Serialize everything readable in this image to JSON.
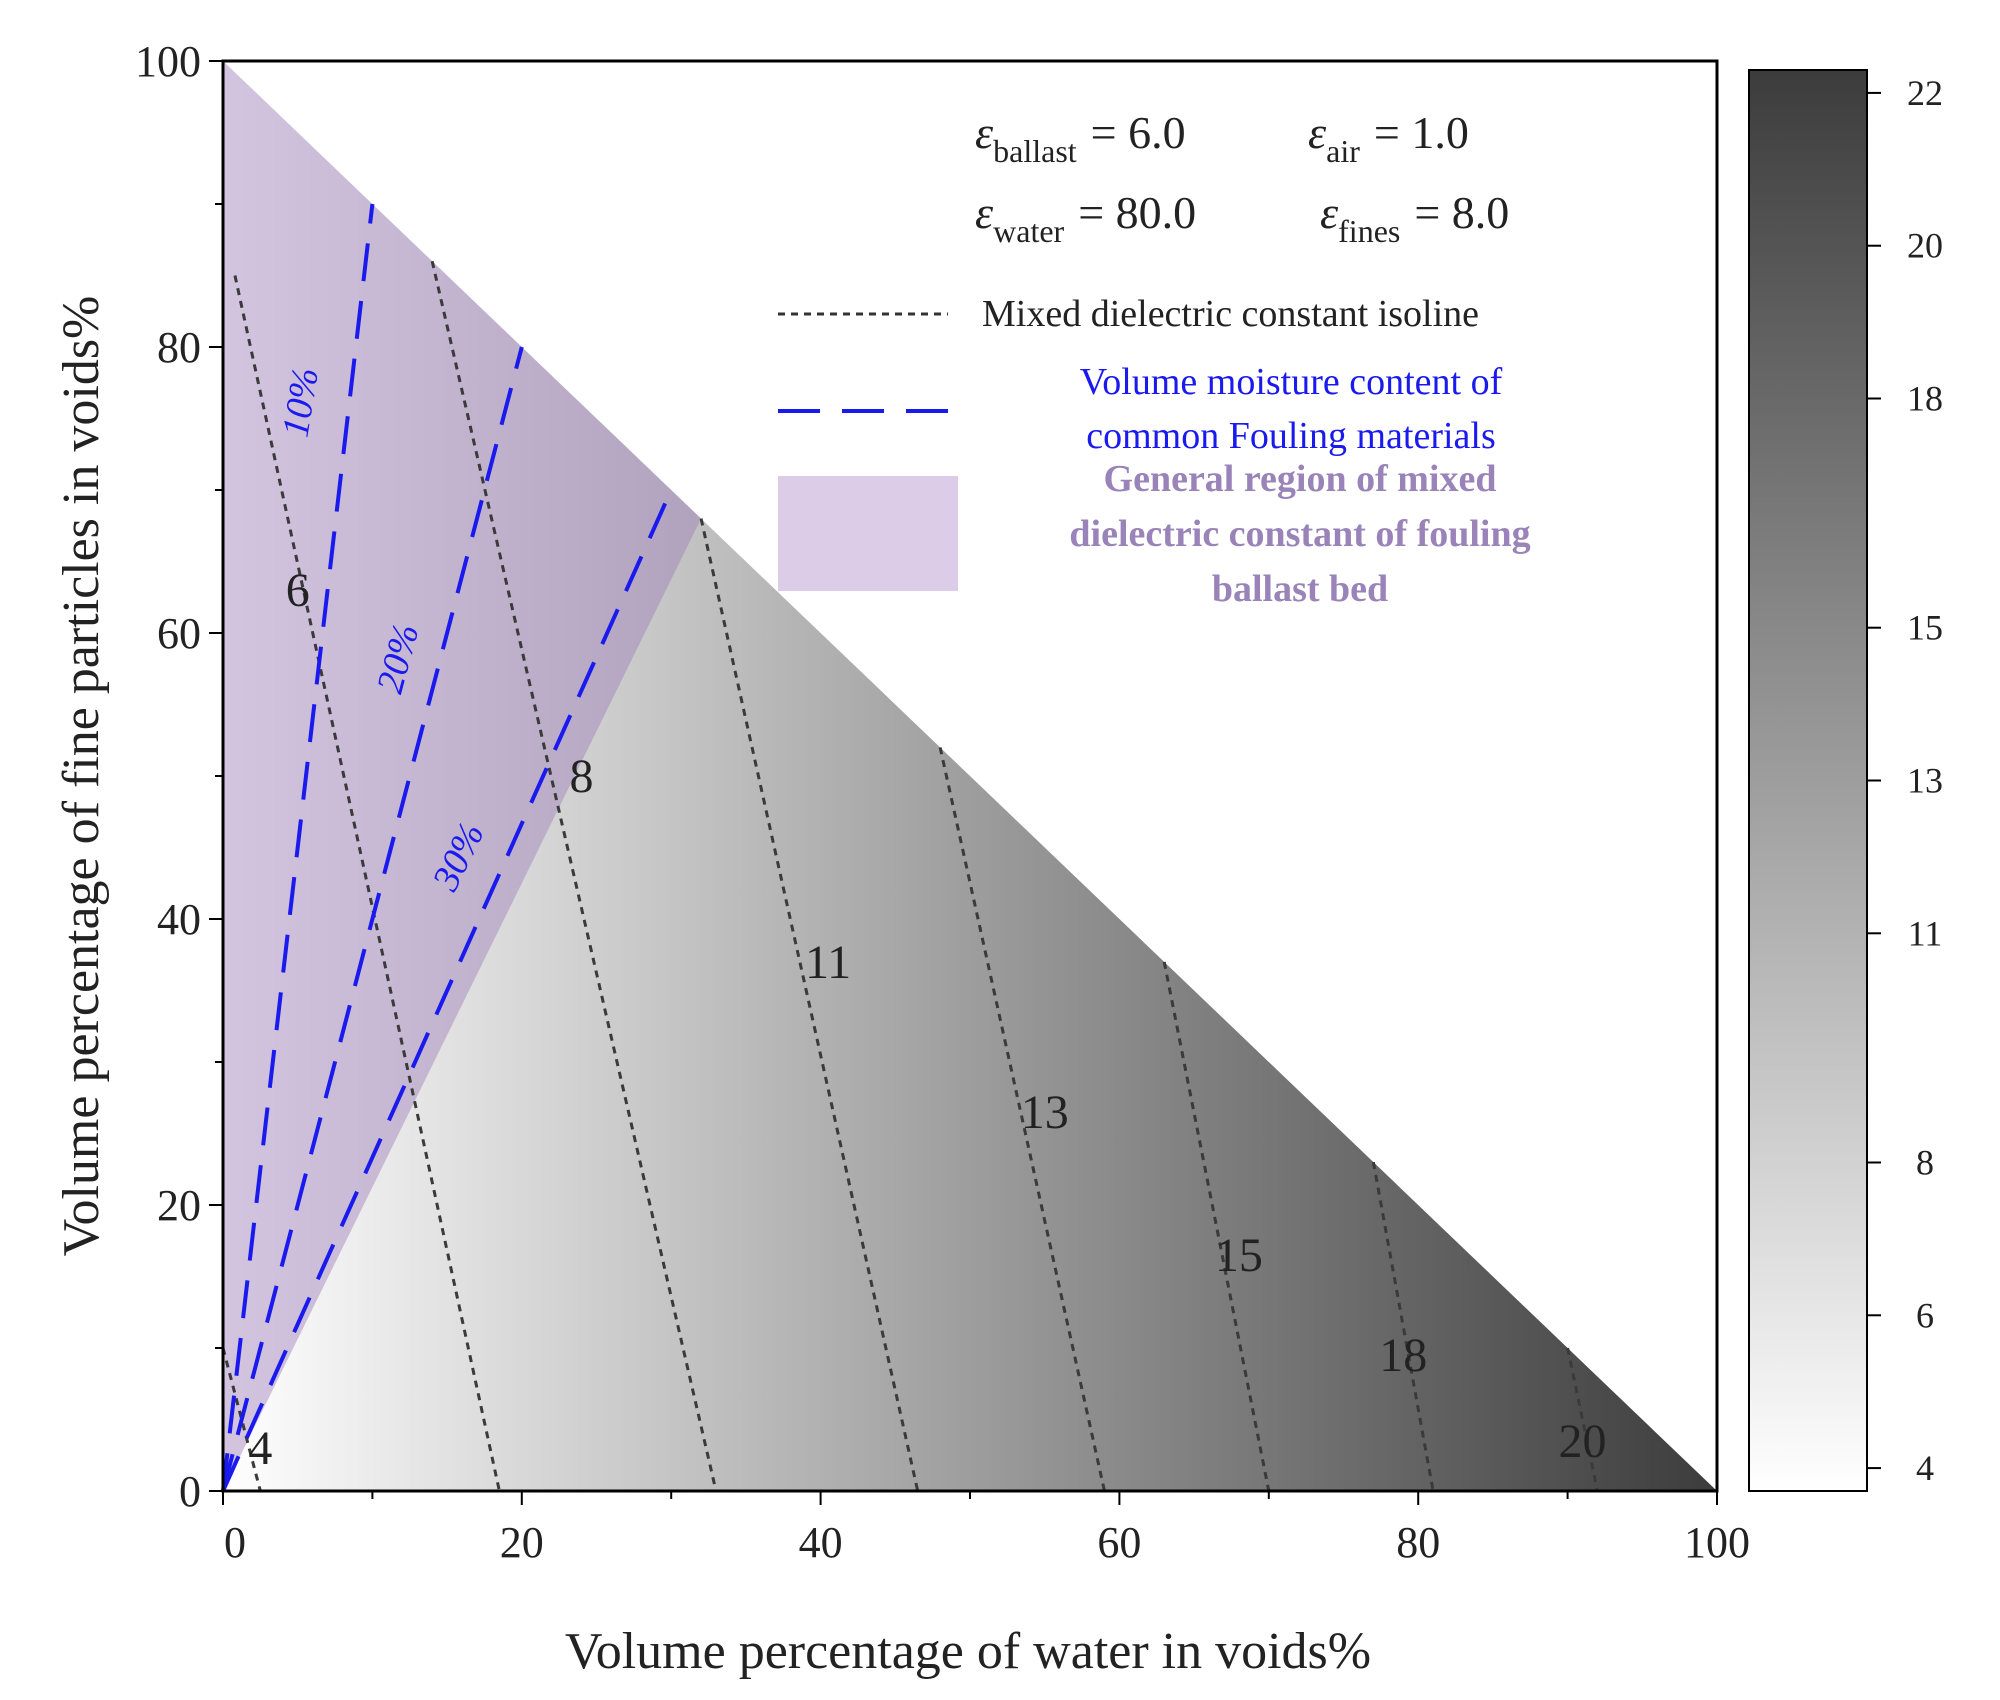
{
  "chart_data": {
    "type": "contour",
    "xlabel": "Volume percentage of water in voids%",
    "ylabel": "Volume percentage of fine particles in voids%",
    "xlim": [
      0,
      100
    ],
    "ylim": [
      0,
      100
    ],
    "x_ticks": [
      "0",
      "20",
      "40",
      "60",
      "80",
      "100"
    ],
    "y_ticks": [
      "0",
      "20",
      "40",
      "60",
      "80",
      "100"
    ],
    "domain": "triangle x + y <= 100",
    "parameters": [
      {
        "symbol": "ε",
        "sub": "ballast",
        "value": "= 6.0"
      },
      {
        "symbol": "ε",
        "sub": "air",
        "value": "= 1.0"
      },
      {
        "symbol": "ε",
        "sub": "water",
        "value": "= 80.0"
      },
      {
        "symbol": "ε",
        "sub": "fines",
        "value": "= 8.0"
      }
    ],
    "colorbar": {
      "min": 3.7,
      "max": 22.3,
      "ticks": [
        4,
        6,
        8,
        11,
        13,
        15,
        18,
        20,
        22
      ],
      "tick_labels": [
        "4",
        "6",
        "8",
        "11",
        "13",
        "15",
        "18",
        "20",
        "22"
      ],
      "color_low": "#ffffff",
      "color_high": "#3c3c3c"
    },
    "isolines": [
      {
        "label": "4",
        "points": [
          [
            0,
            10
          ],
          [
            2.5,
            0
          ]
        ],
        "label_at": [
          2.5,
          3
        ]
      },
      {
        "label": "6",
        "points": [
          [
            0.8,
            85
          ],
          [
            18.5,
            0
          ]
        ],
        "label_at": [
          5,
          63
        ]
      },
      {
        "label": "8",
        "points": [
          [
            14,
            86
          ],
          [
            33,
            0
          ]
        ],
        "label_at": [
          24,
          50
        ]
      },
      {
        "label": "11",
        "points": [
          [
            32,
            68
          ],
          [
            46.5,
            0
          ]
        ],
        "label_at": [
          40.5,
          37
        ]
      },
      {
        "label": "13",
        "points": [
          [
            48,
            52
          ],
          [
            59,
            0
          ]
        ],
        "label_at": [
          55,
          26.5
        ]
      },
      {
        "label": "15",
        "points": [
          [
            63,
            37
          ],
          [
            70,
            0
          ]
        ],
        "label_at": [
          68,
          16.5
        ]
      },
      {
        "label": "18",
        "points": [
          [
            77,
            23
          ],
          [
            81,
            0
          ]
        ],
        "label_at": [
          79,
          9.5
        ]
      },
      {
        "label": "20",
        "points": [
          [
            90,
            10
          ],
          [
            92,
            0
          ]
        ],
        "label_at": [
          91,
          3.5
        ]
      }
    ],
    "moisture_lines": [
      {
        "label": "10%",
        "points": [
          [
            0,
            0
          ],
          [
            10,
            90
          ]
        ],
        "label_at": [
          6,
          76
        ],
        "label_rotate": -81
      },
      {
        "label": "20%",
        "points": [
          [
            0,
            0
          ],
          [
            20,
            80
          ]
        ],
        "label_at": [
          12.5,
          58
        ],
        "label_rotate": -75
      },
      {
        "label": "30%",
        "points": [
          [
            0,
            0
          ],
          [
            30,
            70
          ]
        ],
        "label_at": [
          16.5,
          44
        ],
        "label_rotate": -64
      }
    ],
    "fouling_region": [
      [
        0,
        0
      ],
      [
        0,
        100
      ],
      [
        32,
        68
      ]
    ],
    "fouling_region_color": "#9d7fba",
    "legend": {
      "isoline_label": "Mixed dielectric constant isoline",
      "moisture_label": [
        "Volume moisture content of",
        "common Fouling materials"
      ],
      "region_label": [
        "General region of mixed",
        "dielectric constant of fouling",
        "ballast bed"
      ]
    }
  }
}
